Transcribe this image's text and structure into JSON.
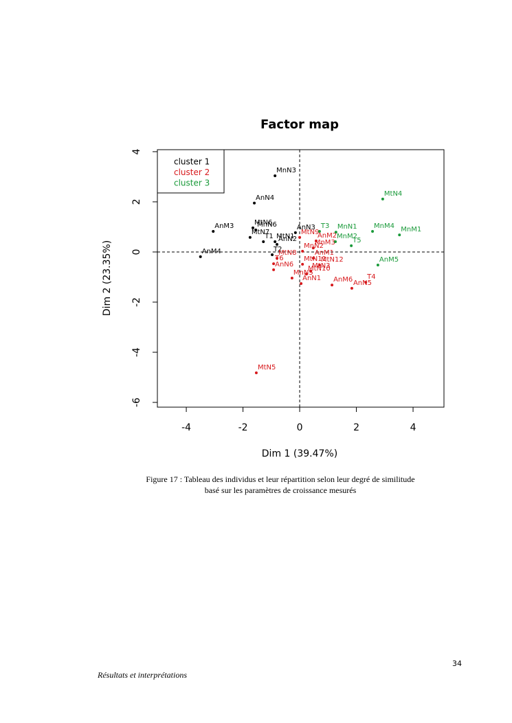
{
  "chart_data": {
    "type": "scatter",
    "title": "Factor map",
    "x_label": "Dim 1 (39.47%)",
    "y_label": "Dim 2 (23.35%)",
    "xlim": [
      -5.02,
      5.09
    ],
    "ylim": [
      -6.19,
      4.08
    ],
    "xticks": [
      -4,
      -2,
      0,
      2,
      4
    ],
    "yticks": [
      -6,
      -4,
      -2,
      0,
      2,
      4
    ],
    "reference_x": 0,
    "reference_y": 0,
    "legend": "top-left",
    "series": [
      {
        "name": "cluster 1",
        "color": "#000000",
        "labels": [
          "MnN3",
          "AnN4",
          "AnM3",
          "MtN6",
          "MnN6",
          "AnN3",
          "T1",
          "MtN1",
          "MtN7",
          "AnN2",
          "AnM4",
          "T2"
        ],
        "x": [
          -0.87,
          -1.6,
          -3.05,
          -1.65,
          -1.55,
          -0.15,
          -1.28,
          -0.87,
          -1.75,
          -0.8,
          -3.5,
          -0.97
        ],
        "values": [
          3.04,
          1.95,
          0.82,
          0.96,
          0.88,
          0.77,
          0.41,
          0.41,
          0.58,
          0.3,
          -0.19,
          -0.11
        ]
      },
      {
        "name": "cluster 2",
        "color": "#d7191c",
        "labels": [
          "MtN9",
          "AnM2",
          "MnN2",
          "MnM3",
          "MtN8",
          "AnM1",
          "T6",
          "MtN11",
          "MtN12",
          "MtN3",
          "AnN6",
          "MnN5",
          "MtN10",
          "AnM6",
          "T4",
          "AnN1",
          "AnN5",
          "MtN5"
        ],
        "x": [
          0,
          0.58,
          0.1,
          0.48,
          -0.8,
          0.48,
          -0.92,
          0.1,
          0.7,
          0.39,
          -0.92,
          -0.27,
          0.24,
          1.14,
          2.33,
          0.05,
          1.84,
          -1.53
        ],
        "values": [
          0.58,
          0.44,
          0.03,
          0.16,
          -0.25,
          -0.25,
          -0.47,
          -0.49,
          -0.52,
          -0.77,
          -0.71,
          -1.04,
          -0.88,
          -1.32,
          -1.21,
          -1.26,
          -1.45,
          -4.82
        ]
      },
      {
        "name": "cluster 3",
        "color": "#1a9a3a",
        "labels": [
          "MtN4",
          "T3",
          "MnN1",
          "MnM4",
          "MnM2",
          "MnM1",
          "T5",
          "AnM5"
        ],
        "x": [
          2.93,
          0.7,
          1.28,
          2.57,
          1.26,
          3.52,
          1.82,
          2.76
        ],
        "values": [
          2.11,
          0.82,
          0.79,
          0.82,
          0.41,
          0.68,
          0.25,
          -0.52
        ]
      }
    ]
  },
  "caption": [
    "Figure 17 : Tableau  des individus et leur répartition selon leur degré de similitude",
    "basé sur les paramètres de croissance mesurés"
  ],
  "page_number": "34",
  "footer": "Résultats et interprétations"
}
